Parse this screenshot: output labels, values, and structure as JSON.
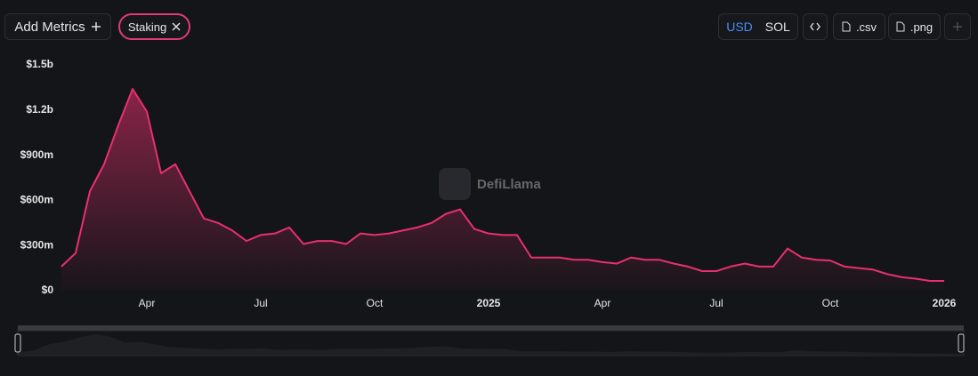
{
  "ui": {
    "add_metrics": "Add Metrics",
    "metric_tag": "Staking",
    "currencies": [
      "USD",
      "SOL"
    ],
    "active_currency": "USD",
    "csv": ".csv",
    "png": ".png",
    "watermark": "DefiLlama"
  },
  "chart_data": {
    "type": "area",
    "color": "#e8306e",
    "categories": [
      null,
      null,
      null,
      null,
      null,
      null,
      "Apr",
      null,
      null,
      null,
      null,
      null,
      null,
      null,
      "Jul",
      null,
      null,
      null,
      null,
      null,
      null,
      null,
      "Oct",
      null,
      null,
      null,
      null,
      null,
      null,
      null,
      "2025",
      null,
      null,
      null,
      null,
      null,
      null,
      null,
      "Apr",
      null,
      null,
      null,
      null,
      null,
      null,
      null,
      "Jul",
      null,
      null,
      null,
      null,
      null,
      null,
      null,
      "Oct",
      null,
      null,
      null,
      null,
      null,
      null,
      null,
      "2026"
    ],
    "values": [
      160000000,
      250000000,
      660000000,
      840000000,
      1100000000,
      1340000000,
      1190000000,
      780000000,
      840000000,
      660000000,
      480000000,
      450000000,
      400000000,
      330000000,
      370000000,
      380000000,
      420000000,
      310000000,
      330000000,
      330000000,
      310000000,
      380000000,
      370000000,
      380000000,
      400000000,
      420000000,
      450000000,
      510000000,
      540000000,
      410000000,
      380000000,
      370000000,
      370000000,
      220000000,
      220000000,
      220000000,
      205000000,
      205000000,
      190000000,
      180000000,
      220000000,
      205000000,
      205000000,
      180000000,
      160000000,
      130000000,
      130000000,
      160000000,
      180000000,
      160000000,
      160000000,
      280000000,
      220000000,
      205000000,
      200000000,
      160000000,
      150000000,
      140000000,
      110000000,
      90000000,
      80000000,
      65000000,
      65000000
    ],
    "ylim": [
      0,
      1500000000
    ],
    "yticks": [
      {
        "value": 0,
        "label": "$0"
      },
      {
        "value": 300000000,
        "label": "$300m"
      },
      {
        "value": 600000000,
        "label": "$600m"
      },
      {
        "value": 900000000,
        "label": "$900m"
      },
      {
        "value": 1200000000,
        "label": "$1.2b"
      },
      {
        "value": 1500000000,
        "label": "$1.5b"
      }
    ],
    "grid": false
  }
}
